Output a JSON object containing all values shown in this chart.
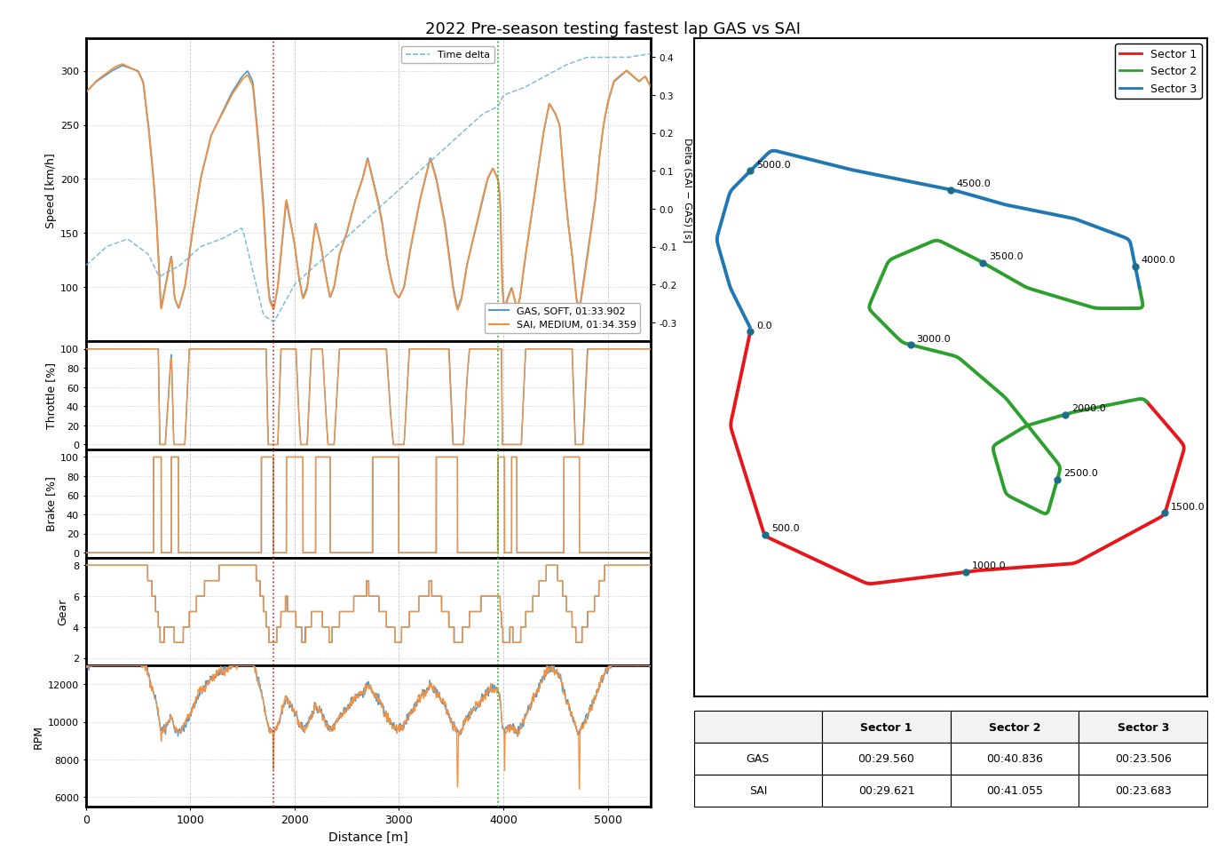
{
  "title": "2022 Pre-season testing fastest lap GAS vs SAI",
  "gas_label": "GAS, SOFT, 01:33.902",
  "sai_label": "SAI, MEDIUM, 01:34.359",
  "gas_color": "#5599cc",
  "sai_color": "#f5913e",
  "delta_color": "#6ab0d8",
  "sector_colors": [
    "#e8151b",
    "#2ca02c",
    "#1f77b4"
  ],
  "sector_boundaries": [
    1800,
    3950
  ],
  "x_max": 5450,
  "x_ticks": [
    0,
    1000,
    2000,
    3000,
    4000,
    5000
  ],
  "speed_ylim": [
    50,
    330
  ],
  "speed_yticks": [
    100,
    150,
    200,
    250,
    300
  ],
  "throttle_ylim": [
    -5,
    108
  ],
  "throttle_yticks": [
    0,
    20,
    40,
    60,
    80,
    100
  ],
  "brake_ylim": [
    -5,
    108
  ],
  "brake_yticks": [
    0,
    20,
    40,
    60,
    80,
    100
  ],
  "gear_ylim": [
    1.5,
    8.5
  ],
  "gear_yticks": [
    2,
    4,
    6,
    8
  ],
  "rpm_ylim": [
    5500,
    13000
  ],
  "rpm_yticks": [
    6000,
    8000,
    10000,
    12000
  ],
  "delta_ylim": [
    -0.35,
    0.45
  ],
  "delta_yticks": [
    -0.3,
    -0.2,
    -0.1,
    0.0,
    0.1,
    0.2,
    0.3,
    0.4
  ],
  "sector_times": {
    "GAS": [
      "00:29.560",
      "00:40.836",
      "00:23.506"
    ],
    "SAI": [
      "00:29.621",
      "00:41.055",
      "00:23.683"
    ]
  },
  "track_annotations": [
    {
      "dist": 0.0,
      "label": "0.0"
    },
    {
      "dist": 500.0,
      "label": "500.0"
    },
    {
      "dist": 1000.0,
      "label": "1000.0"
    },
    {
      "dist": 1500.0,
      "label": "1500.0"
    },
    {
      "dist": 2000.0,
      "label": "2000.0"
    },
    {
      "dist": 2500.0,
      "label": "2500.0"
    },
    {
      "dist": 3000.0,
      "label": "3000.0"
    },
    {
      "dist": 3500.0,
      "label": "3500.0"
    },
    {
      "dist": 4000.0,
      "label": "4000.0"
    },
    {
      "dist": 4500.0,
      "label": "4500.0"
    },
    {
      "dist": 5000.0,
      "label": "5000.0"
    }
  ],
  "background_color": "#ffffff",
  "grid_color": "#bbbbbb",
  "spine_color": "#000000"
}
